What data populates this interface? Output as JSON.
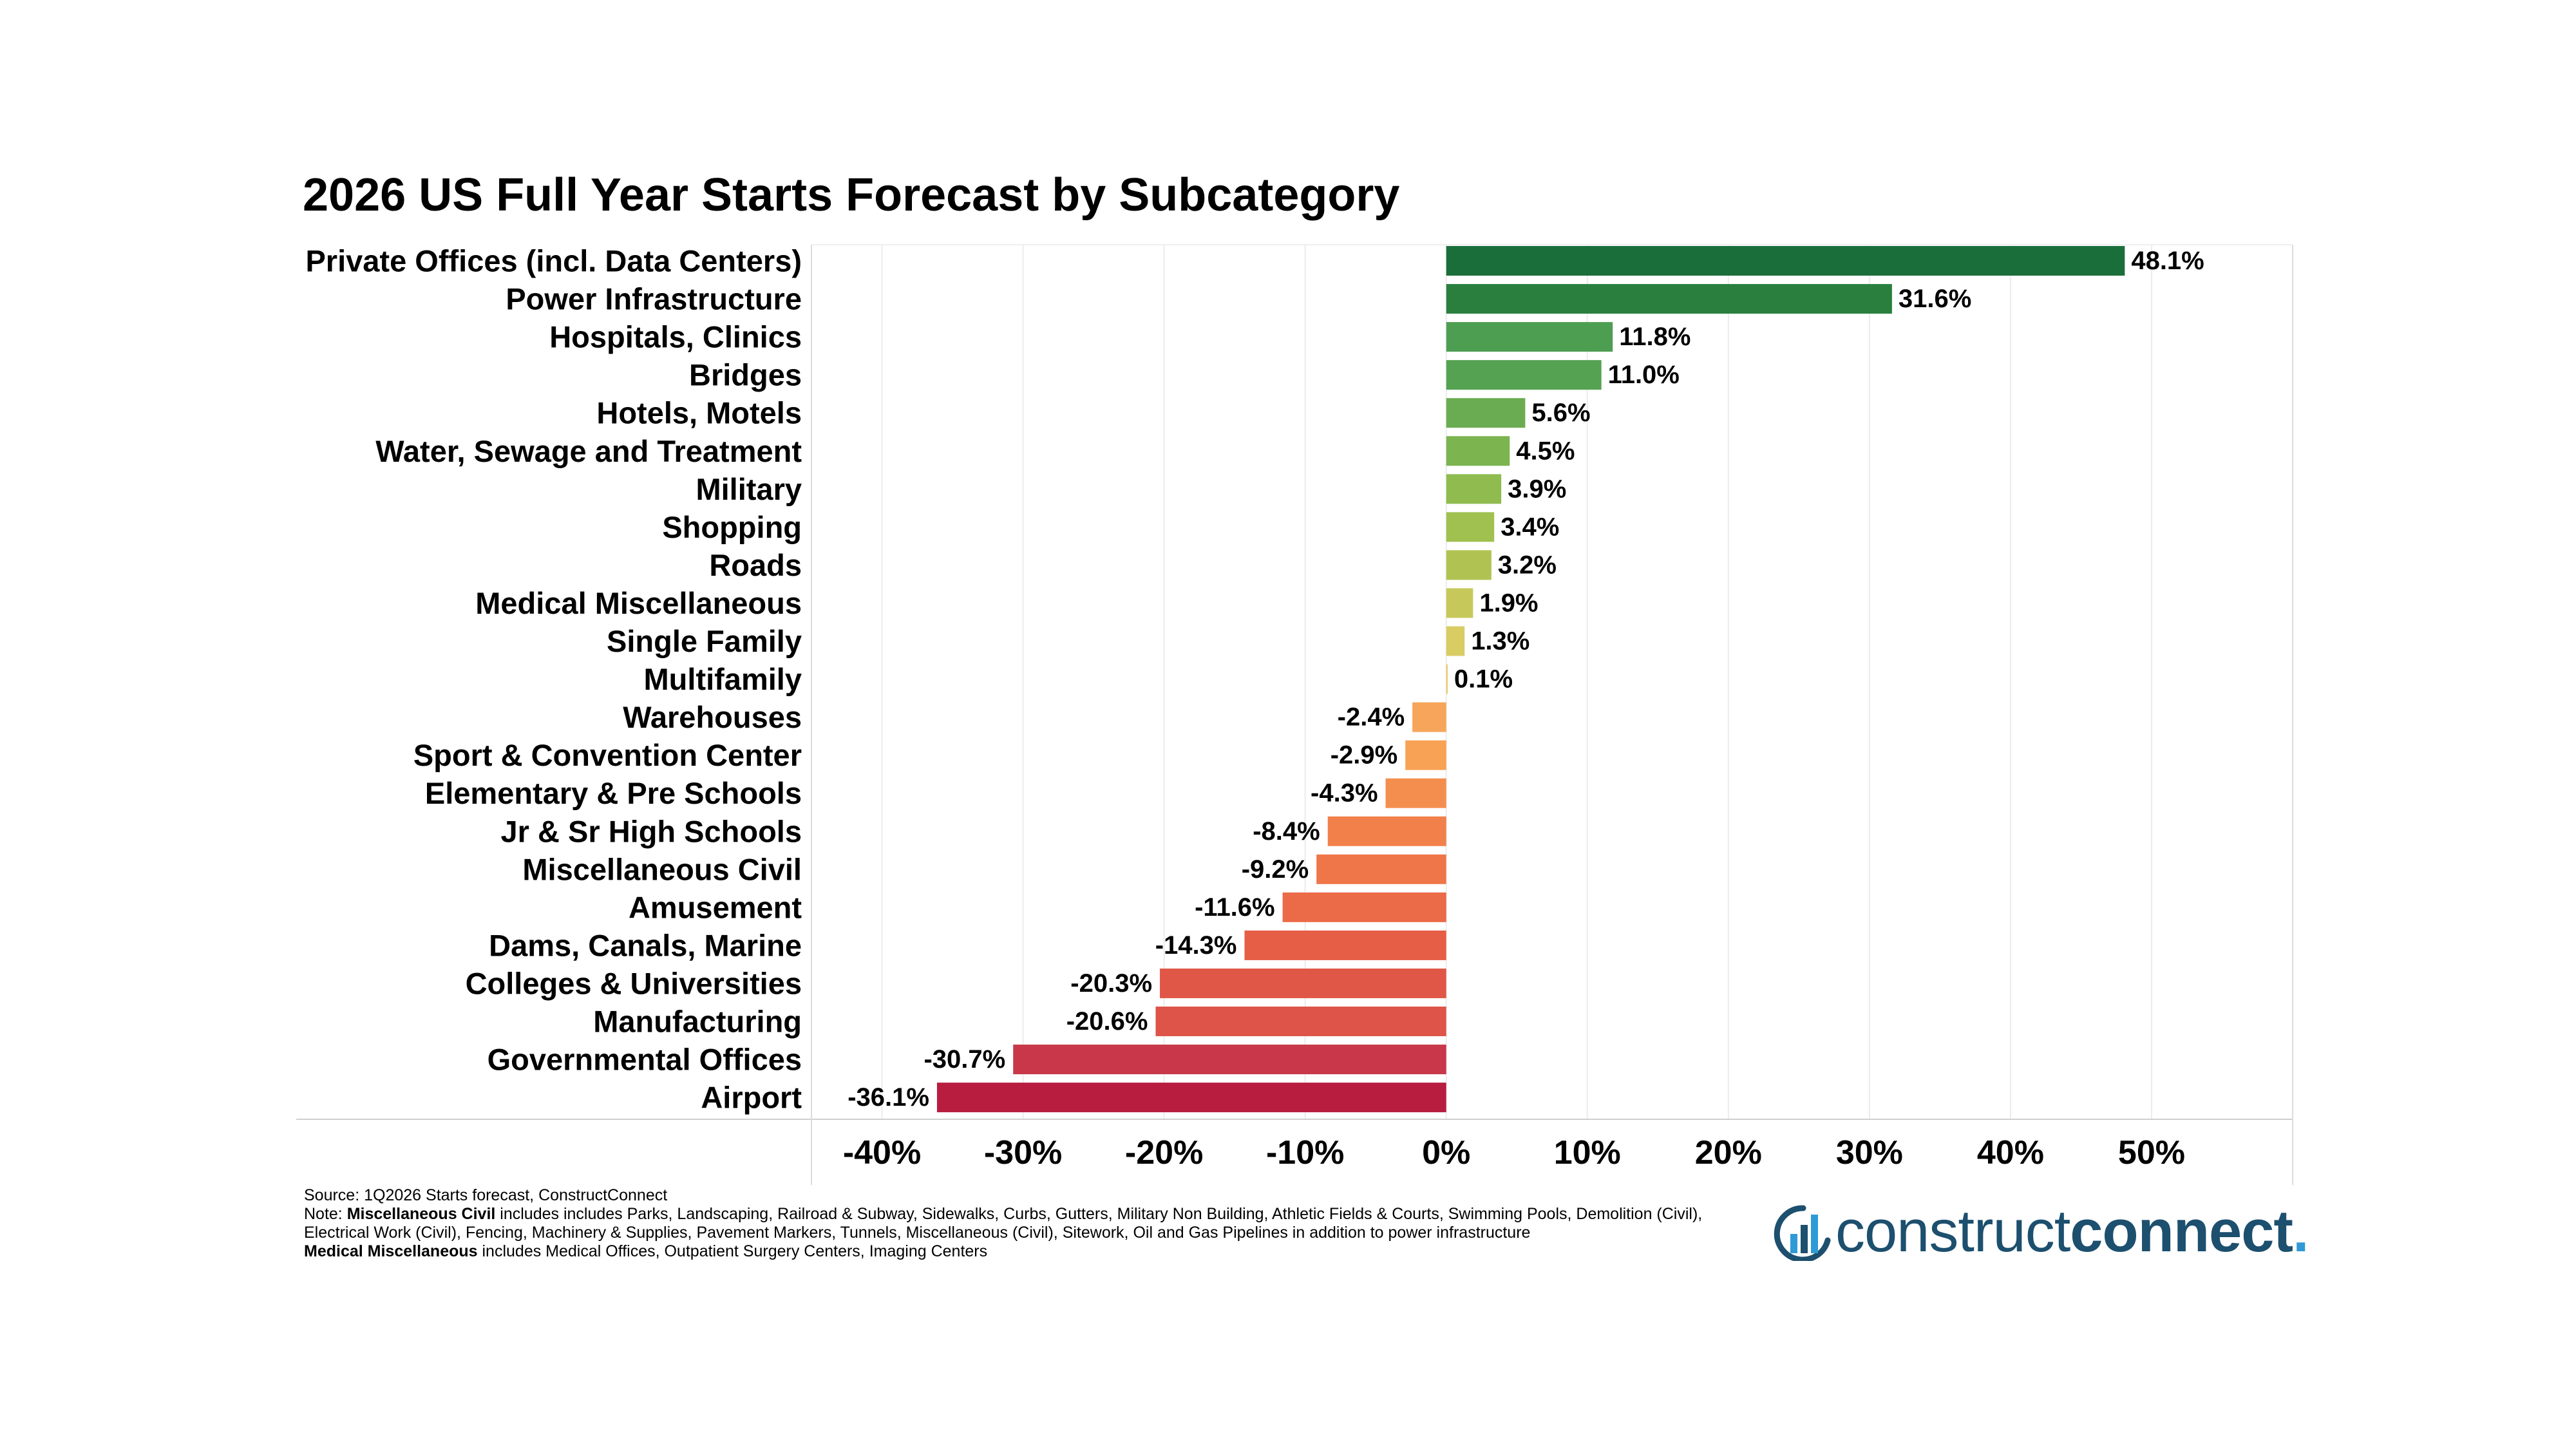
{
  "chart_data": {
    "type": "bar",
    "orientation": "horizontal",
    "title": "2026 US Full Year Starts Forecast by Subcategory",
    "categories": [
      "Private Offices (incl. Data Centers)",
      "Power Infrastructure",
      "Hospitals, Clinics",
      "Bridges",
      "Hotels, Motels",
      "Water, Sewage and Treatment",
      "Military",
      "Shopping",
      "Roads",
      "Medical Miscellaneous",
      "Single Family",
      "Multifamily",
      "Warehouses",
      "Sport & Convention Center",
      "Elementary & Pre Schools",
      "Jr & Sr High Schools",
      "Miscellaneous Civil",
      "Amusement",
      "Dams, Canals, Marine",
      "Colleges & Universities",
      "Manufacturing",
      "Governmental Offices",
      "Airport"
    ],
    "values": [
      48.1,
      31.6,
      11.8,
      11.0,
      5.6,
      4.5,
      3.9,
      3.4,
      3.2,
      1.9,
      1.3,
      0.1,
      -2.4,
      -2.9,
      -4.3,
      -8.4,
      -9.2,
      -11.6,
      -14.3,
      -20.3,
      -20.6,
      -30.7,
      -36.1
    ],
    "value_labels": [
      "48.1%",
      "31.6%",
      "11.8%",
      "11.0%",
      "5.6%",
      "4.5%",
      "3.9%",
      "3.4%",
      "3.2%",
      "1.9%",
      "1.3%",
      "0.1%",
      "-2.4%",
      "-2.9%",
      "-4.3%",
      "-8.4%",
      "-9.2%",
      "-11.6%",
      "-14.3%",
      "-20.3%",
      "-20.6%",
      "-30.7%",
      "-36.1%"
    ],
    "colors": [
      "#1a6e3a",
      "#2a7f3f",
      "#4e9e52",
      "#55a253",
      "#6aac52",
      "#7cb450",
      "#8fbb4f",
      "#a0c050",
      "#b0c352",
      "#c6c85a",
      "#d8cc62",
      "#e8c866",
      "#f6a55a",
      "#f8a256",
      "#f48e4e",
      "#f2804b",
      "#ef7649",
      "#eb6a47",
      "#e65e45",
      "#e05748",
      "#de5449",
      "#c8384a",
      "#b81d3f"
    ],
    "xlim": [
      -45,
      60
    ],
    "x_ticks": [
      -40,
      -30,
      -20,
      -10,
      0,
      10,
      20,
      30,
      40,
      50
    ],
    "x_tick_labels": [
      "-40%",
      "-30%",
      "-20%",
      "-10%",
      "0%",
      "10%",
      "20%",
      "30%",
      "40%",
      "50%"
    ],
    "grid": true,
    "legend": "none"
  },
  "notes": {
    "source": "Source: 1Q2026 Starts forecast, ConstructConnect",
    "note_prefix": "Note: ",
    "misc_civil_term": "Miscellaneous Civil",
    "misc_civil_text_1": " includes includes Parks, Landscaping, Railroad & Subway, Sidewalks, Curbs, Gutters, Military Non Building, Athletic Fields & Courts, Swimming Pools, Demolition (Civil),",
    "misc_civil_text_2": "Electrical Work (Civil), Fencing, Machinery & Supplies, Pavement Markers, Tunnels, Miscellaneous (Civil), Sitework, Oil and Gas Pipelines in addition to power infrastructure",
    "medical_misc_term": "Medical Miscellaneous",
    "medical_misc_text": " includes Medical Offices, Outpatient Surgery Centers, Imaging Centers"
  },
  "logo": {
    "text_light": "construct",
    "text_bold": "connect",
    "colors": {
      "text": "#1d4f6e",
      "accent": "#2f9ad6"
    }
  }
}
